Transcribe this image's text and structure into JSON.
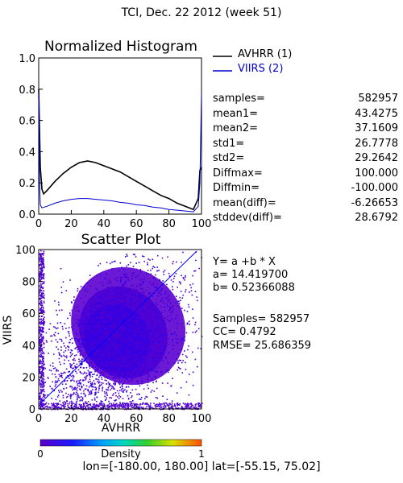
{
  "page_title": "TCI,  Dec. 22 2012 (week 51)",
  "histogram": {
    "title": "Normalized Histogram",
    "legend": [
      {
        "label": "AVHRR (1)",
        "color": "#000000"
      },
      {
        "label": "VIIRS (2)",
        "color": "#0000cc"
      }
    ]
  },
  "stats": [
    {
      "key": "samples=",
      "value": "582957"
    },
    {
      "key": "mean1=",
      "value": "43.4275"
    },
    {
      "key": "mean2=",
      "value": "37.1609"
    },
    {
      "key": "std1=",
      "value": "26.7778"
    },
    {
      "key": "std2=",
      "value": "29.2642"
    },
    {
      "key": "Diffmax=",
      "value": "100.000"
    },
    {
      "key": "Diffmin=",
      "value": "-100.000"
    },
    {
      "key": "mean(diff)=",
      "value": "-6.26653"
    },
    {
      "key": "stddev(diff)=",
      "value": "28.6792"
    }
  ],
  "scatter": {
    "title": "Scatter Plot",
    "xlabel": "AVHRR",
    "ylabel": "VIIRS",
    "regression": [
      "Y= a +b * X",
      "a= 14.419700",
      "b= 0.52366088"
    ],
    "metrics": [
      "Samples= 582957",
      "CC=  0.4792",
      "RMSE= 25.686359"
    ]
  },
  "colorbar": {
    "min_label": "0",
    "label": "Density",
    "max_label": "1"
  },
  "footer": "lon=[-180.00, 180.00] lat=[-55.15, 75.02]",
  "chart_data": [
    {
      "type": "line",
      "title": "Normalized Histogram",
      "xlim": [
        0,
        100
      ],
      "ylim": [
        0,
        1.0
      ],
      "x_ticks": [
        0,
        20,
        40,
        60,
        80,
        100
      ],
      "y_ticks": [
        "0.0",
        "0.2",
        "0.4",
        "0.6",
        "0.8",
        "1.0"
      ],
      "series": [
        {
          "name": "AVHRR (1)",
          "color": "#000000",
          "x": [
            0,
            1,
            2,
            3,
            5,
            10,
            15,
            20,
            25,
            30,
            35,
            40,
            45,
            50,
            55,
            60,
            65,
            70,
            75,
            80,
            85,
            90,
            95,
            98,
            99,
            100
          ],
          "y": [
            0.8,
            0.3,
            0.16,
            0.13,
            0.15,
            0.21,
            0.26,
            0.3,
            0.33,
            0.34,
            0.33,
            0.31,
            0.29,
            0.27,
            0.24,
            0.21,
            0.18,
            0.15,
            0.12,
            0.1,
            0.07,
            0.05,
            0.03,
            0.1,
            0.28,
            0.3
          ]
        },
        {
          "name": "VIIRS (2)",
          "color": "#0000cc",
          "x": [
            0,
            0.5,
            1,
            2,
            5,
            10,
            15,
            20,
            25,
            30,
            35,
            40,
            45,
            50,
            55,
            60,
            65,
            70,
            75,
            80,
            85,
            90,
            95,
            98,
            99,
            100
          ],
          "y": [
            0.78,
            0.2,
            0.06,
            0.04,
            0.05,
            0.07,
            0.085,
            0.095,
            0.1,
            0.1,
            0.095,
            0.09,
            0.085,
            0.075,
            0.07,
            0.06,
            0.055,
            0.045,
            0.04,
            0.03,
            0.025,
            0.02,
            0.015,
            0.05,
            0.2,
            0.78
          ]
        }
      ]
    },
    {
      "type": "scatter",
      "title": "Scatter Plot",
      "xlabel": "AVHRR",
      "ylabel": "VIIRS",
      "xlim": [
        0,
        100
      ],
      "ylim": [
        0,
        100
      ],
      "x_ticks": [
        0,
        20,
        40,
        60,
        80,
        100
      ],
      "y_ticks": [
        0,
        20,
        40,
        60,
        80,
        100
      ],
      "regression": {
        "a": 14.4197,
        "b": 0.52366088
      },
      "samples": 582957,
      "cc": 0.4792,
      "rmse": 25.686359
    }
  ]
}
